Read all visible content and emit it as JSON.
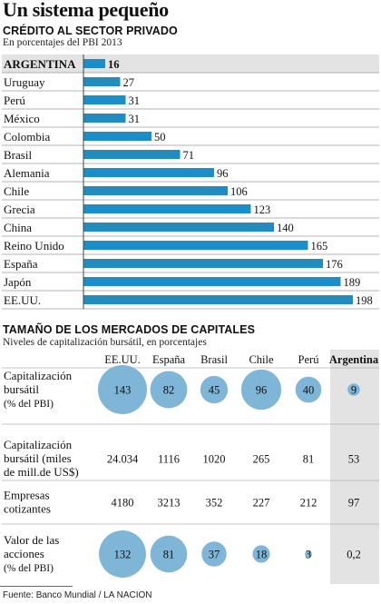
{
  "header": {
    "title": "Un sistema pequeño"
  },
  "chart_data": [
    {
      "type": "bar",
      "title": "CRÉDITO AL SECTOR PRIVADO",
      "subtitle": "En porcentajes del PBI 2013",
      "categories": [
        "ARGENTINA",
        "Uruguay",
        "Perú",
        "México",
        "Colombia",
        "Brasil",
        "Alemania",
        "Chile",
        "Grecia",
        "China",
        "Reino Unido",
        "España",
        "Japón",
        "EE.UU."
      ],
      "values": [
        16,
        27,
        31,
        31,
        50,
        71,
        96,
        106,
        123,
        140,
        165,
        176,
        189,
        198
      ],
      "bar_color": "#1f8dc4",
      "highlight_bg": "#e3e3e3"
    },
    {
      "type": "table",
      "title": "TAMAÑO DE LOS MERCADOS DE CAPITALES",
      "subtitle": "Niveles de capitalización bursátil, en porcentajes",
      "columns": [
        "EE.UU.",
        "España",
        "Brasil",
        "Chile",
        "Perú",
        "Argentina"
      ],
      "rows": [
        {
          "label_lines": [
            "Capitalización",
            "bursátil"
          ],
          "unit": "(% del PBI)",
          "values": [
            "143",
            "82",
            "45",
            "96",
            "40",
            "9"
          ],
          "bubble_values": [
            143,
            82,
            45,
            96,
            40,
            9
          ]
        },
        {
          "label_lines": [
            "Capitalización",
            "bursátil (miles",
            "de mill.de US$)"
          ],
          "unit": "",
          "values": [
            "24.034",
            "1116",
            "1020",
            "265",
            "81",
            "53"
          ]
        },
        {
          "label_lines": [
            "Empresas",
            "cotizantes"
          ],
          "unit": "",
          "values": [
            "4180",
            "3213",
            "352",
            "227",
            "212",
            "97"
          ]
        },
        {
          "label_lines": [
            "Valor de las",
            "acciones"
          ],
          "unit": "(% del PBI)",
          "values": [
            "132",
            "81",
            "37",
            "18",
            "3",
            "0,2"
          ],
          "bubble_values": [
            132,
            81,
            37,
            18,
            3,
            null
          ]
        }
      ],
      "bubble_color": "#7fb5d6",
      "highlight_bg": "#e3e3e3"
    }
  ],
  "footer": {
    "source": "Fuente: Banco Mundial / LA NACION"
  }
}
